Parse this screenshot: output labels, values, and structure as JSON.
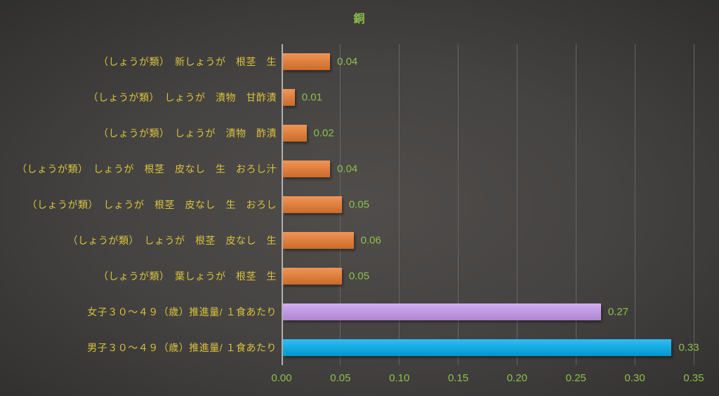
{
  "chart_data": {
    "type": "bar",
    "orientation": "horizontal",
    "title": "銅",
    "categories": [
      "（しょうが類）　新しょうが　根茎　生",
      "（しょうが類）　しょうが　漬物　甘酢漬",
      "（しょうが類）　しょうが　漬物　酢漬",
      "（しょうが類）　しょうが　根茎　皮なし　生　おろし汁",
      "（しょうが類）　しょうが　根茎　皮なし　生　おろし",
      "（しょうが類）　しょうが　根茎　皮なし　生",
      "（しょうが類）　葉しょうが　根茎　生",
      "女子３０～４９（歳）推進量/ １食あたり",
      "男子３０～４９（歳）推進量/ １食あたり"
    ],
    "values": [
      0.04,
      0.01,
      0.02,
      0.04,
      0.05,
      0.06,
      0.05,
      0.27,
      0.33
    ],
    "value_labels": [
      "0.04",
      "0.01",
      "0.02",
      "0.04",
      "0.05",
      "0.06",
      "0.05",
      "0.27",
      "0.33"
    ],
    "bar_colors": [
      "#ED7D31",
      "#ED7D31",
      "#ED7D31",
      "#ED7D31",
      "#ED7D31",
      "#ED7D31",
      "#ED7D31",
      "#CA9CF2",
      "#00B0F0"
    ],
    "xlim": [
      0,
      0.35
    ],
    "x_ticks": [
      "0.00",
      "0.05",
      "0.10",
      "0.15",
      "0.20",
      "0.25",
      "0.30",
      "0.35"
    ],
    "grid": true,
    "legend": "none",
    "colors": {
      "title_text": "#8DC04A",
      "category_text": "#D9C33B",
      "value_text": "#8DC04A",
      "tick_text": "#8DC04A",
      "gridline": "#6E6C6A",
      "axis_line": "#B3B1AF"
    }
  }
}
